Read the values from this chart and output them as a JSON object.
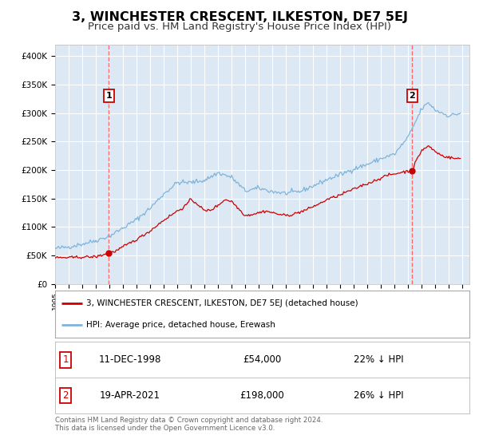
{
  "title": "3, WINCHESTER CRESCENT, ILKESTON, DE7 5EJ",
  "subtitle": "Price paid vs. HM Land Registry's House Price Index (HPI)",
  "title_fontsize": 11.5,
  "subtitle_fontsize": 9.5,
  "ylabel_ticks": [
    "£0",
    "£50K",
    "£100K",
    "£150K",
    "£200K",
    "£250K",
    "£300K",
    "£350K",
    "£400K"
  ],
  "ytick_values": [
    0,
    50000,
    100000,
    150000,
    200000,
    250000,
    300000,
    350000,
    400000
  ],
  "ylim": [
    0,
    420000
  ],
  "xlim_start": 1995.0,
  "xlim_end": 2025.5,
  "plot_bg_color": "#dce9f5",
  "grid_color": "#ffffff",
  "red_line_color": "#cc0000",
  "blue_line_color": "#7fb3d9",
  "point1_x": 1998.95,
  "point1_y": 54000,
  "point2_x": 2021.29,
  "point2_y": 198000,
  "point1_label": "11-DEC-1998",
  "point1_price": "£54,000",
  "point1_hpi": "22% ↓ HPI",
  "point2_label": "19-APR-2021",
  "point2_price": "£198,000",
  "point2_hpi": "26% ↓ HPI",
  "legend_label_red": "3, WINCHESTER CRESCENT, ILKESTON, DE7 5EJ (detached house)",
  "legend_label_blue": "HPI: Average price, detached house, Erewash",
  "footer": "Contains HM Land Registry data © Crown copyright and database right 2024.\nThis data is licensed under the Open Government Licence v3.0."
}
